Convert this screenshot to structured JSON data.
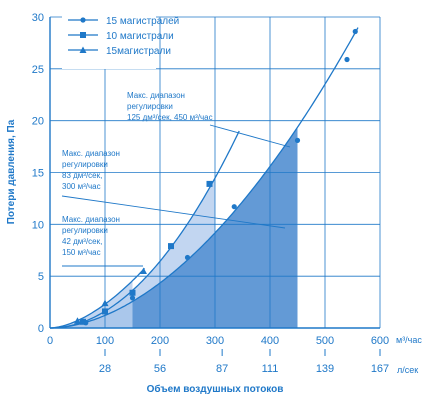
{
  "colors": {
    "primary": "#1f78c8",
    "fill_dark": "#5b95d4",
    "fill_light": "#b7cfee",
    "grid": "#1f78c8",
    "text": "#1f78c8"
  },
  "chart_data": {
    "type": "line",
    "ylabel": "Потери давления, Па",
    "xlabel": "Объем воздушных потоков",
    "x_unit_primary": "м³/час",
    "x_unit_secondary": "л/сек",
    "xlim": [
      0,
      600
    ],
    "ylim": [
      0,
      30
    ],
    "x_ticks": [
      0,
      100,
      200,
      300,
      400,
      500,
      600
    ],
    "x_tick_labels": [
      "0",
      "100",
      "200",
      "300",
      "400",
      "500",
      "600"
    ],
    "x2_ticks": [
      100,
      200,
      313,
      400,
      500,
      600
    ],
    "x2_tick_labels": [
      "28",
      "56",
      "87",
      "111",
      "139",
      "167"
    ],
    "y_ticks": [
      0,
      5,
      10,
      15,
      20,
      25,
      30
    ],
    "y_tick_labels": [
      "0",
      "5",
      "10",
      "15",
      "20",
      "25",
      "30"
    ],
    "grid": true,
    "legend_position": "top-left",
    "series": [
      {
        "name": "15 магистралей",
        "marker": "circle",
        "x": [
          65,
          150,
          250,
          335,
          450,
          540,
          555
        ],
        "y": [
          0.5,
          2.9,
          6.8,
          11.7,
          18.1,
          25.9,
          28.6
        ]
      },
      {
        "name": "10 магистрали",
        "marker": "square",
        "x": [
          0,
          60,
          100,
          150,
          220,
          290
        ],
        "y": [
          0.1,
          0.6,
          1.6,
          3.4,
          7.9,
          13.9
        ]
      },
      {
        "name": "15магистрали",
        "marker": "triangle",
        "x": [
          0,
          50,
          100,
          170
        ],
        "y": [
          0.1,
          0.7,
          2.4,
          5.5
        ]
      }
    ],
    "regions": [
      {
        "series": "15 магистралей",
        "x_end": 450,
        "label_lines": [
          "Макс. диапазон",
          "регулировки",
          "125 дм³/сек, 450 м³/час"
        ]
      },
      {
        "series": "10 магистрали",
        "x_end": 300,
        "label_lines": [
          "Макс. диапазон",
          "регулировки",
          "83 дм³/сек,",
          "300 м³/час"
        ]
      },
      {
        "series": "15магистрали",
        "x_end": 150,
        "label_lines": [
          "Макс. диапазон",
          "регулировки",
          "42 дм³/сек,",
          "150 м³/час"
        ]
      }
    ]
  }
}
